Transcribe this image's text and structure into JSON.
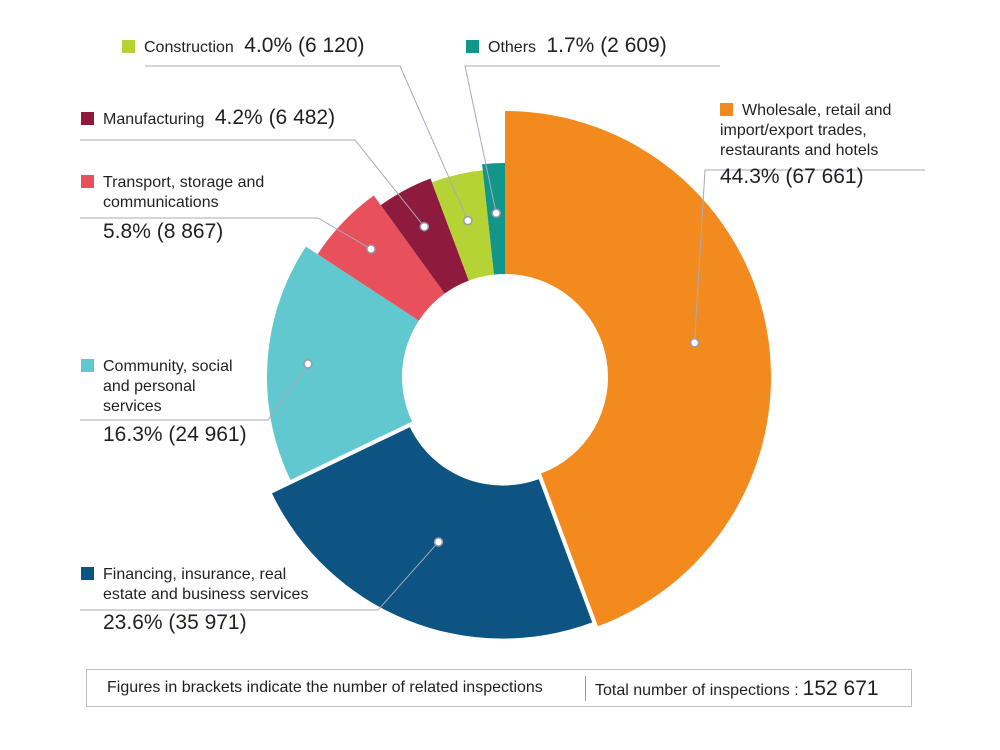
{
  "chart_data": {
    "type": "pie",
    "style": "donut",
    "slices": [
      {
        "key": "wholesale",
        "label": "Wholesale, retail and import/export trades, restaurants and hotels",
        "label_lines": [
          "Wholesale, retail and",
          "import/export trades,",
          "restaurants and hotels"
        ],
        "percent_text": "44.3%",
        "count_text": "(67 661)",
        "value": 67661,
        "color": "#F28A1E"
      },
      {
        "key": "financing",
        "label": "Financing, insurance, real estate and business services",
        "label_lines": [
          "Financing, insurance, real",
          "estate and business services"
        ],
        "percent_text": "23.6%",
        "count_text": "(35 971)",
        "value": 35971,
        "color": "#0E5482"
      },
      {
        "key": "community",
        "label": "Community, social and personal services",
        "label_lines": [
          "Community, social",
          "and personal",
          "services"
        ],
        "percent_text": "16.3%",
        "count_text": "(24 961)",
        "value": 24961,
        "color": "#62C8D0"
      },
      {
        "key": "transport",
        "label": "Transport, storage and communications",
        "label_lines": [
          "Transport, storage and",
          "communications"
        ],
        "percent_text": "5.8%",
        "count_text": "(8 867)",
        "value": 8867,
        "color": "#E8505B"
      },
      {
        "key": "manufacturing",
        "label": "Manufacturing",
        "label_lines": [
          "Manufacturing"
        ],
        "percent_text": "4.2%",
        "count_text": "(6 482)",
        "value": 6482,
        "color": "#8E1A3E"
      },
      {
        "key": "construction",
        "label": "Construction",
        "label_lines": [
          "Construction"
        ],
        "percent_text": "4.0%",
        "count_text": "(6 120)",
        "value": 6120,
        "color": "#B5D334"
      },
      {
        "key": "others",
        "label": "Others",
        "label_lines": [
          "Others"
        ],
        "percent_text": "1.7%",
        "count_text": "(2 609)",
        "value": 2609,
        "color": "#12968A"
      }
    ]
  },
  "footer": {
    "note": "Figures in brackets indicate the number of related inspections",
    "total_label": "Total number of inspections :",
    "total_value": "152 671"
  }
}
